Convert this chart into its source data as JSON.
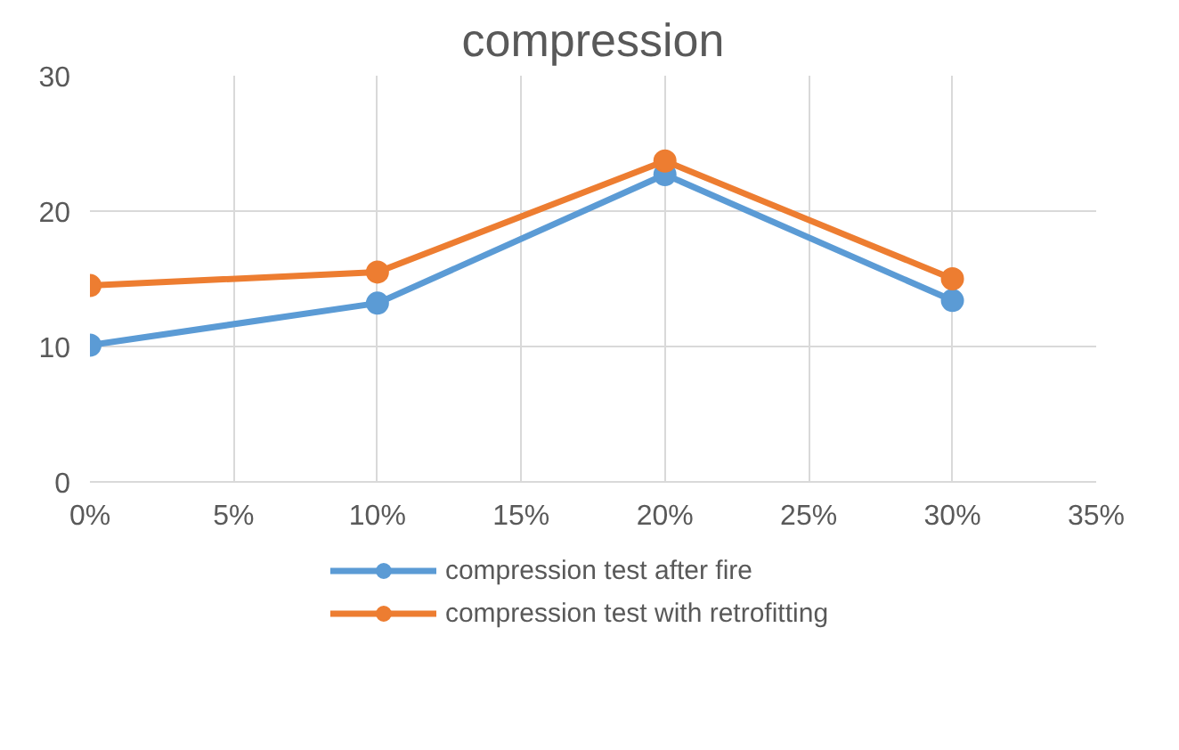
{
  "chart_data": {
    "type": "line",
    "title": "compression",
    "x": [
      0,
      10,
      20,
      30
    ],
    "xlim": [
      0,
      35
    ],
    "xticks": [
      {
        "value": 0,
        "label": "0%"
      },
      {
        "value": 5,
        "label": "5%"
      },
      {
        "value": 10,
        "label": "10%"
      },
      {
        "value": 15,
        "label": "15%"
      },
      {
        "value": 20,
        "label": "20%"
      },
      {
        "value": 25,
        "label": "25%"
      },
      {
        "value": 30,
        "label": "30%"
      },
      {
        "value": 35,
        "label": "35%"
      }
    ],
    "ylim": [
      0,
      30
    ],
    "yticks": [
      0,
      10,
      20,
      30
    ],
    "grid": true,
    "legend": "bottom",
    "marker": "circle",
    "line_style": "solid",
    "series": [
      {
        "name": "compression test after fire",
        "color": "#5b9bd5",
        "values": [
          10.1,
          13.2,
          22.7,
          13.4
        ]
      },
      {
        "name": "compression test with retrofitting",
        "color": "#ed7d31",
        "values": [
          14.5,
          15.5,
          23.7,
          15.0
        ]
      }
    ]
  }
}
